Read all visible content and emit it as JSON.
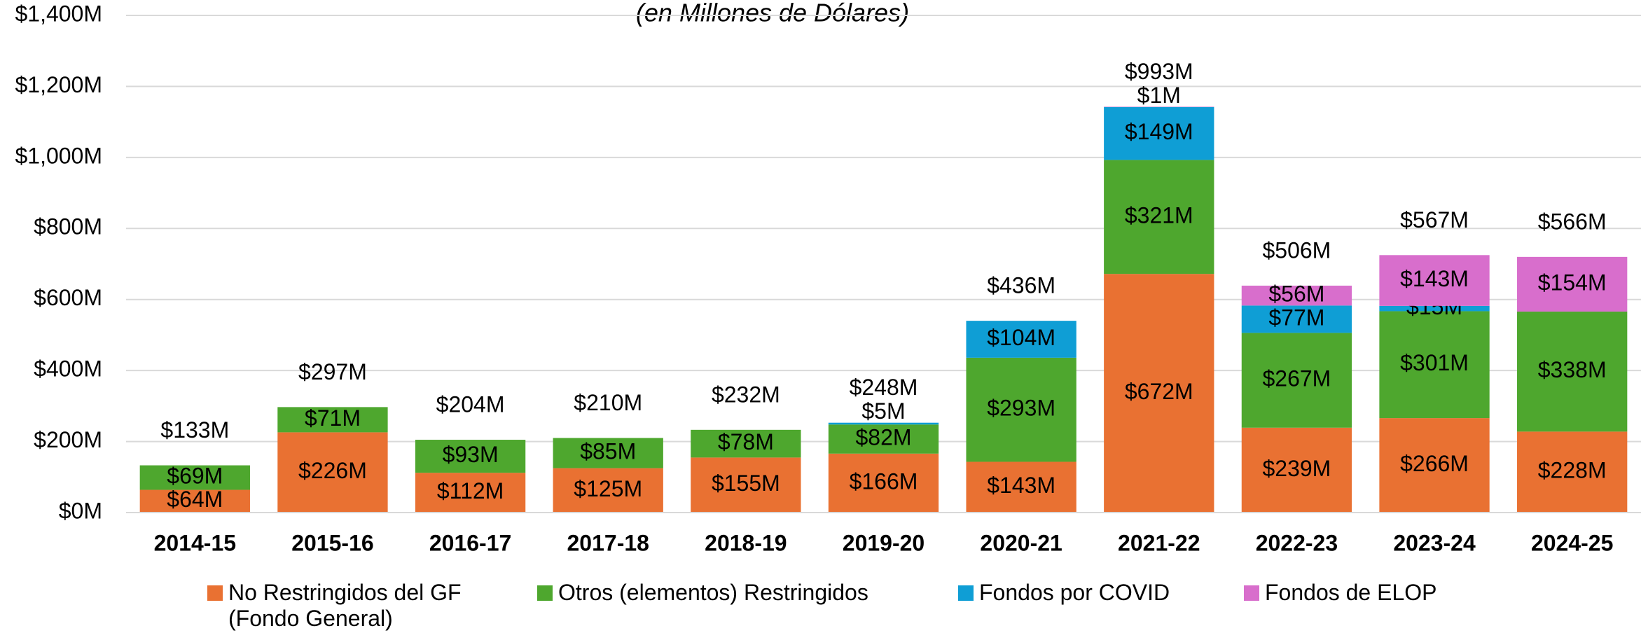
{
  "chart_data": {
    "type": "stacked_bar",
    "subtitle": "(en Millones de Dólares)",
    "categories": [
      "2014-15",
      "2015-16",
      "2016-17",
      "2017-18",
      "2018-19",
      "2019-20",
      "2020-21",
      "2021-22",
      "2022-23",
      "2023-24",
      "2024-25"
    ],
    "series": [
      {
        "name": "No Restringidos del GF (Fondo General)",
        "color": "#e97132",
        "values": [
          64,
          226,
          112,
          125,
          155,
          166,
          143,
          672,
          239,
          266,
          228
        ],
        "value_labels": [
          "$64M",
          "$226M",
          "$112M",
          "$125M",
          "$155M",
          "$166M",
          "$143M",
          "$672M",
          "$239M",
          "$266M",
          "$228M"
        ]
      },
      {
        "name": "Otros (elementos) Restringidos",
        "color": "#4ea72e",
        "values": [
          69,
          71,
          93,
          85,
          78,
          82,
          293,
          321,
          267,
          301,
          338
        ],
        "value_labels": [
          "$69M",
          "$71M",
          "$93M",
          "$85M",
          "$78M",
          "$82M",
          "$293M",
          "$321M",
          "$267M",
          "$301M",
          "$338M"
        ]
      },
      {
        "name": "Fondos por COVID",
        "color": "#0f9ed5",
        "values": [
          null,
          null,
          null,
          null,
          null,
          5,
          104,
          149,
          77,
          15,
          null
        ],
        "value_labels": [
          null,
          null,
          null,
          null,
          null,
          "$5M",
          "$104M",
          "$149M",
          "$77M",
          "$15M",
          null
        ]
      },
      {
        "name": "Fondos de ELOP",
        "color": "#d86ecc",
        "values": [
          null,
          null,
          null,
          null,
          null,
          null,
          null,
          1,
          56,
          143,
          154
        ],
        "value_labels": [
          null,
          null,
          null,
          null,
          null,
          null,
          null,
          "$1M",
          "$56M",
          "$143M",
          "$154M"
        ]
      }
    ],
    "totals": {
      "values": [
        133,
        297,
        204,
        210,
        232,
        248,
        436,
        993,
        506,
        567,
        566
      ],
      "value_labels": [
        "$133M",
        "$297M",
        "$204M",
        "$210M",
        "$232M",
        "$248M",
        "$436M",
        "$993M",
        "$506M",
        "$567M",
        "$566M"
      ]
    },
    "ylim": [
      0,
      1400
    ],
    "yticks": [
      {
        "value": 0,
        "label": "$0M"
      },
      {
        "value": 200,
        "label": "$200M"
      },
      {
        "value": 400,
        "label": "$400M"
      },
      {
        "value": 600,
        "label": "$600M"
      },
      {
        "value": 800,
        "label": "$800M"
      },
      {
        "value": 1000,
        "label": "$1,000M"
      },
      {
        "value": 1200,
        "label": "$1,200M"
      },
      {
        "value": 1400,
        "label": "$1,400M"
      }
    ],
    "grid": true
  }
}
